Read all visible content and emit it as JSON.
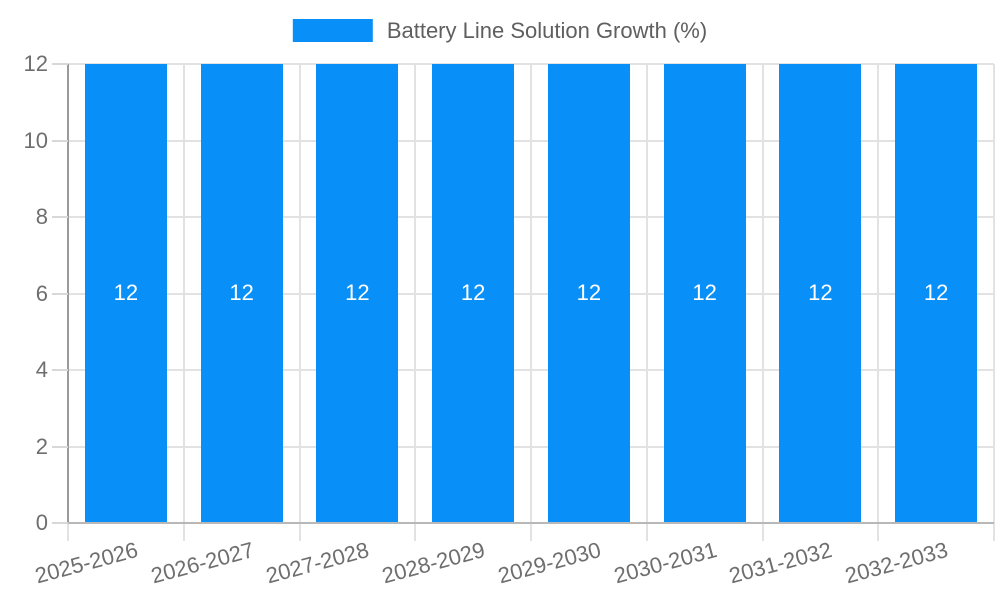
{
  "chart": {
    "legend": {
      "label": "Battery Line Solution Growth (%)"
    },
    "colors": {
      "bar": "#0890f8",
      "grid": "#e2e2e2",
      "tick": "#d8d8d8",
      "axis_y": "#9a9a9a",
      "axis_x": "#b8b8b8",
      "tick_label_text": "#6e6e6e",
      "legend_text": "#5f5f5f",
      "bar_label_text": "#ffffff",
      "background": "#ffffff"
    }
  },
  "chart_data": {
    "type": "bar",
    "title": "Battery Line Solution Growth (%)",
    "categories": [
      "2025-2026",
      "2026-2027",
      "2027-2028",
      "2028-2029",
      "2029-2030",
      "2030-2031",
      "2031-2032",
      "2032-2033"
    ],
    "values": [
      12,
      12,
      12,
      12,
      12,
      12,
      12,
      12
    ],
    "bar_value_labels": [
      "12",
      "12",
      "12",
      "12",
      "12",
      "12",
      "12",
      "12"
    ],
    "xlabel": "",
    "ylabel": "",
    "ylim": [
      0,
      12
    ],
    "yticks": [
      0,
      2,
      4,
      6,
      8,
      10,
      12
    ],
    "grid": true,
    "legend_position": "top-center",
    "x_tick_rotation_deg": -15,
    "bar_value_label_position": "center"
  }
}
